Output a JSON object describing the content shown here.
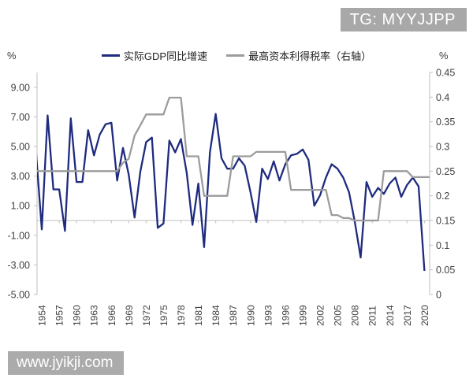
{
  "badges": {
    "tg_label": "TG: MYYJJPP",
    "tg_bg": "#a8a8a8",
    "watermark": "www.jyikji.com",
    "watermark_bg": "#ababab"
  },
  "legend": [
    {
      "label": "实际GDP同比增速",
      "color": "#1f2b7e"
    },
    {
      "label": "最高资本利得税率（右轴）",
      "color": "#9c9c9c"
    }
  ],
  "axes": {
    "left_unit": "%",
    "right_unit": "%",
    "left_ticks": [
      "9.00",
      "7.00",
      "5.00",
      "3.00",
      "1.00",
      "-1.00",
      "-3.00",
      "-5.00"
    ],
    "right_ticks": [
      "0.45",
      "0.4",
      "0.35",
      "0.3",
      "0.25",
      "0.2",
      "0.15",
      "0.1",
      "0.05",
      "0"
    ],
    "x_tick_years": [
      "1954",
      "1957",
      "1960",
      "1963",
      "1966",
      "1969",
      "1972",
      "1975",
      "1978",
      "1981",
      "1984",
      "1987",
      "1990",
      "1993",
      "1996",
      "1999",
      "2002",
      "2005",
      "2008",
      "2011",
      "2014",
      "2017",
      "2020"
    ],
    "axis_color": "#bfbfbf"
  },
  "chart_data": {
    "type": "line",
    "title": "",
    "xlabel": "",
    "ylabel_left": "%",
    "ylabel_right": "%",
    "left_ylim": [
      -5,
      9
    ],
    "right_ylim": [
      0,
      0.45
    ],
    "grid": "zero-line-only",
    "legend_position": "top",
    "x": [
      1953,
      1954,
      1955,
      1956,
      1957,
      1958,
      1959,
      1960,
      1961,
      1962,
      1963,
      1964,
      1965,
      1966,
      1967,
      1968,
      1969,
      1970,
      1971,
      1972,
      1973,
      1974,
      1975,
      1976,
      1977,
      1978,
      1979,
      1980,
      1981,
      1982,
      1983,
      1984,
      1985,
      1986,
      1987,
      1988,
      1989,
      1990,
      1991,
      1992,
      1993,
      1994,
      1995,
      1996,
      1997,
      1998,
      1999,
      2000,
      2001,
      2002,
      2003,
      2004,
      2005,
      2006,
      2007,
      2008,
      2009,
      2010,
      2011,
      2012,
      2013,
      2014,
      2015,
      2016,
      2017,
      2018,
      2019,
      2020
    ],
    "series": [
      {
        "name": "实际GDP同比增速",
        "axis": "left",
        "color": "#1f2b7e",
        "values": [
          4.7,
          -0.6,
          7.1,
          2.1,
          2.1,
          -0.7,
          6.9,
          2.6,
          2.6,
          6.1,
          4.4,
          5.8,
          6.5,
          6.6,
          2.7,
          4.9,
          3.1,
          0.2,
          3.3,
          5.3,
          5.6,
          -0.5,
          -0.2,
          5.4,
          4.6,
          5.5,
          3.2,
          -0.3,
          2.5,
          -1.8,
          4.6,
          7.2,
          4.2,
          3.5,
          3.5,
          4.2,
          3.7,
          1.9,
          -0.1,
          3.5,
          2.8,
          4.0,
          2.7,
          3.8,
          4.4,
          4.5,
          4.8,
          4.1,
          1.0,
          1.7,
          2.9,
          3.8,
          3.5,
          2.9,
          1.9,
          -0.1,
          -2.5,
          2.6,
          1.6,
          2.2,
          1.8,
          2.5,
          2.9,
          1.6,
          2.4,
          2.9,
          2.3,
          -3.4
        ]
      },
      {
        "name": "最高资本利得税率（右轴）",
        "axis": "right",
        "color": "#9c9c9c",
        "values": [
          0.25,
          0.25,
          0.25,
          0.25,
          0.25,
          0.25,
          0.25,
          0.25,
          0.25,
          0.25,
          0.25,
          0.25,
          0.25,
          0.25,
          0.25,
          0.267,
          0.275,
          0.322,
          0.343,
          0.365,
          0.365,
          0.365,
          0.365,
          0.399,
          0.399,
          0.399,
          0.28,
          0.28,
          0.28,
          0.2,
          0.2,
          0.2,
          0.2,
          0.2,
          0.28,
          0.28,
          0.28,
          0.28,
          0.289,
          0.289,
          0.289,
          0.289,
          0.289,
          0.289,
          0.212,
          0.212,
          0.212,
          0.212,
          0.212,
          0.212,
          0.212,
          0.161,
          0.161,
          0.155,
          0.155,
          0.15,
          0.15,
          0.15,
          0.15,
          0.15,
          0.25,
          0.25,
          0.25,
          0.25,
          0.25,
          0.238,
          0.238,
          0.238
        ]
      }
    ]
  }
}
